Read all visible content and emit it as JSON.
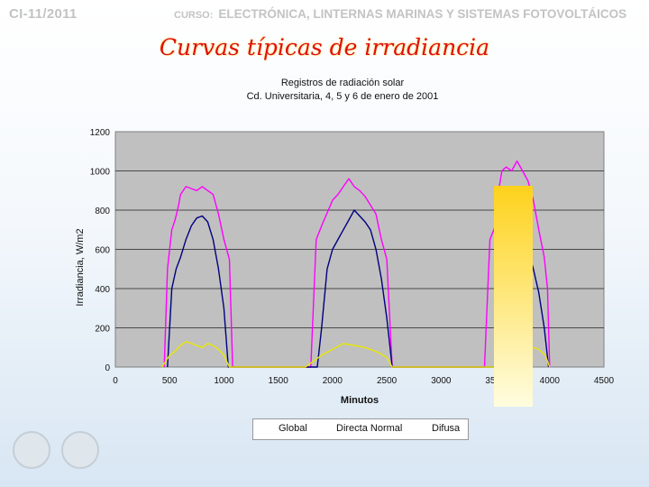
{
  "header": {
    "left": "CI-11/2011",
    "curso_label": "CURSO:",
    "course_name": "ELECTRÓNICA, LINTERNAS MARINAS Y SISTEMAS FOTOVOLTÁICOS"
  },
  "slide_title": "Curvas típicas de irradiancia",
  "chart_data": {
    "type": "line",
    "title": "Registros de radiación solar",
    "subtitle": "Cd. Universitaria, 4, 5 y 6 de enero de 2001",
    "xlabel": "Minutos",
    "ylabel": "Irradiancia, W/m2",
    "xlim": [
      0,
      4500
    ],
    "ylim": [
      0,
      1200
    ],
    "x_ticks": [
      0,
      500,
      1000,
      1500,
      2000,
      2500,
      3000,
      3500,
      4000,
      4500
    ],
    "y_ticks": [
      0,
      200,
      400,
      600,
      800,
      1000,
      1200
    ],
    "grid": true,
    "legend_position": "bottom",
    "series": [
      {
        "name": "Global",
        "color": "#ff00ff",
        "x": [
          450,
          480,
          500,
          520,
          550,
          580,
          600,
          650,
          700,
          750,
          800,
          850,
          900,
          950,
          1000,
          1050,
          1080,
          1500,
          1550,
          1800,
          1850,
          1900,
          2000,
          2050,
          2100,
          2150,
          2200,
          2250,
          2300,
          2400,
          2450,
          2500,
          2550,
          2600,
          2650,
          2680,
          3400,
          3450,
          3500,
          3530,
          3560,
          3600,
          3650,
          3700,
          3750,
          3800,
          3850,
          3900,
          3950,
          3980,
          4000
        ],
        "y": [
          0,
          500,
          600,
          700,
          750,
          820,
          880,
          920,
          910,
          900,
          920,
          900,
          880,
          780,
          650,
          550,
          0,
          0,
          0,
          0,
          650,
          720,
          850,
          880,
          920,
          960,
          920,
          900,
          870,
          780,
          650,
          550,
          0,
          0,
          0,
          0,
          0,
          650,
          720,
          900,
          1000,
          1020,
          1000,
          1050,
          1000,
          950,
          850,
          700,
          560,
          400,
          0
        ]
      },
      {
        "name": "Directa Normal",
        "color": "#000080",
        "x": [
          480,
          520,
          560,
          600,
          650,
          700,
          750,
          800,
          850,
          900,
          950,
          1000,
          1040,
          1860,
          1900,
          1950,
          2000,
          2050,
          2100,
          2150,
          2200,
          2250,
          2300,
          2350,
          2400,
          2450,
          2500,
          2550,
          3500,
          3550,
          3600,
          3650,
          3700,
          3750,
          3800,
          3850,
          3900,
          3950,
          3990
        ],
        "y": [
          0,
          400,
          500,
          560,
          650,
          720,
          760,
          770,
          740,
          650,
          500,
          300,
          0,
          0,
          200,
          500,
          600,
          650,
          700,
          750,
          800,
          770,
          740,
          700,
          600,
          450,
          250,
          0,
          0,
          400,
          620,
          700,
          720,
          650,
          600,
          500,
          380,
          200,
          0
        ]
      },
      {
        "name": "Difusa",
        "color": "#e8e800",
        "x": [
          430,
          500,
          550,
          600,
          650,
          700,
          750,
          800,
          850,
          900,
          950,
          1000,
          1050,
          1750,
          1800,
          1850,
          1900,
          2000,
          2100,
          2150,
          2200,
          2250,
          2300,
          2400,
          2500,
          2550,
          3500,
          3560,
          3600,
          3700,
          3800,
          3900,
          3960,
          4000
        ],
        "y": [
          0,
          60,
          80,
          110,
          130,
          120,
          110,
          100,
          120,
          110,
          90,
          60,
          0,
          0,
          20,
          40,
          60,
          90,
          120,
          115,
          110,
          105,
          100,
          80,
          50,
          0,
          0,
          40,
          60,
          80,
          110,
          90,
          60,
          0
        ]
      }
    ]
  }
}
